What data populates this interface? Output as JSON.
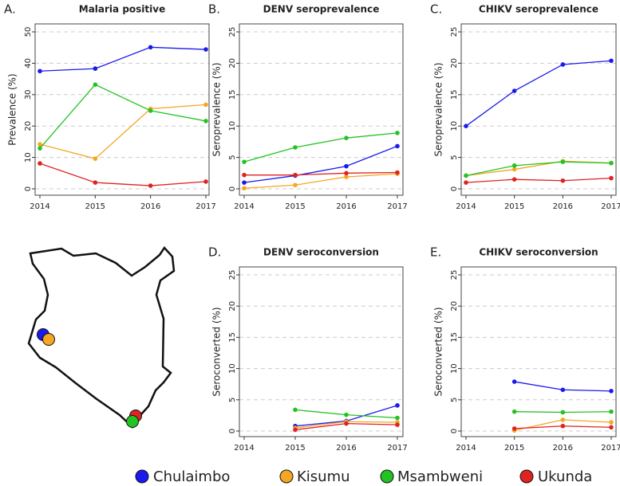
{
  "chart_data": [
    {
      "type": "line",
      "label": "A.",
      "title": "Malaria positive",
      "y_label": "Prevalence (%)",
      "x": [
        2014,
        2015,
        2016,
        2017
      ],
      "xlim": [
        2014,
        2017
      ],
      "xticks": [
        2014,
        2015,
        2016,
        2017
      ],
      "ylim": [
        0,
        50
      ],
      "yticks": [
        0,
        10,
        20,
        30,
        40,
        50
      ],
      "grid": true,
      "series": [
        {
          "name": "Chulaimbo",
          "color": "#1a1aee",
          "values": [
            37.5,
            38.3,
            45.1,
            44.4
          ]
        },
        {
          "name": "Kisumu",
          "color": "#f5a623",
          "values": [
            14.2,
            9.6,
            25.5,
            26.8
          ]
        },
        {
          "name": "Msambweni",
          "color": "#22c322",
          "values": [
            12.9,
            33.2,
            24.9,
            21.6
          ]
        },
        {
          "name": "Ukunda",
          "color": "#e02222",
          "values": [
            8.1,
            2.0,
            1.0,
            2.3
          ]
        }
      ]
    },
    {
      "type": "line",
      "label": "B.",
      "title": "DENV seroprevalence",
      "y_label": "Seroprevalence (%)",
      "x": [
        2014,
        2015,
        2016,
        2017
      ],
      "xlim": [
        2014,
        2017
      ],
      "xticks": [
        2014,
        2015,
        2016,
        2017
      ],
      "ylim": [
        0,
        25
      ],
      "yticks": [
        0,
        5,
        10,
        15,
        20,
        25
      ],
      "grid": true,
      "series": [
        {
          "name": "Chulaimbo",
          "color": "#1a1aee",
          "values": [
            1.0,
            2.1,
            3.6,
            6.8
          ]
        },
        {
          "name": "Kisumu",
          "color": "#f5a623",
          "values": [
            0.1,
            0.6,
            1.9,
            2.4
          ]
        },
        {
          "name": "Msambweni",
          "color": "#22c322",
          "values": [
            4.3,
            6.6,
            8.1,
            8.9
          ]
        },
        {
          "name": "Ukunda",
          "color": "#e02222",
          "values": [
            2.2,
            2.2,
            2.5,
            2.6
          ]
        }
      ]
    },
    {
      "type": "line",
      "label": "C.",
      "title": "CHIKV seroprevalence",
      "y_label": "Seroprevalence (%)",
      "x": [
        2014,
        2015,
        2016,
        2017
      ],
      "xlim": [
        2014,
        2017
      ],
      "xticks": [
        2014,
        2015,
        2016,
        2017
      ],
      "ylim": [
        0,
        25
      ],
      "yticks": [
        0,
        5,
        10,
        15,
        20,
        25
      ],
      "grid": true,
      "series": [
        {
          "name": "Chulaimbo",
          "color": "#1a1aee",
          "values": [
            10.0,
            15.6,
            19.8,
            20.4
          ]
        },
        {
          "name": "Kisumu",
          "color": "#f5a623",
          "values": [
            2.1,
            3.1,
            4.4,
            4.1
          ]
        },
        {
          "name": "Msambweni",
          "color": "#22c322",
          "values": [
            2.1,
            3.7,
            4.3,
            4.1
          ]
        },
        {
          "name": "Ukunda",
          "color": "#e02222",
          "values": [
            1.0,
            1.5,
            1.3,
            1.7
          ]
        }
      ]
    },
    {
      "type": "line",
      "label": "D.",
      "title": "DENV seroconversion",
      "y_label": "Seroconverted (%)",
      "x": [
        2014,
        2015,
        2016,
        2017
      ],
      "xlim": [
        2014,
        2017
      ],
      "xticks": [
        2014,
        2015,
        2016,
        2017
      ],
      "ylim": [
        0,
        25
      ],
      "yticks": [
        0,
        5,
        10,
        15,
        20,
        25
      ],
      "grid": true,
      "series": [
        {
          "name": "Chulaimbo",
          "color": "#1a1aee",
          "values": [
            null,
            0.8,
            1.6,
            4.1
          ]
        },
        {
          "name": "Kisumu",
          "color": "#f5a623",
          "values": [
            null,
            0.5,
            1.5,
            1.4
          ]
        },
        {
          "name": "Msambweni",
          "color": "#22c322",
          "values": [
            null,
            3.4,
            2.6,
            2.1
          ]
        },
        {
          "name": "Ukunda",
          "color": "#e02222",
          "values": [
            null,
            0.2,
            1.2,
            1.0
          ]
        }
      ]
    },
    {
      "type": "line",
      "label": "E.",
      "title": "CHIKV seroconversion",
      "y_label": "Seroconverted (%)",
      "x": [
        2014,
        2015,
        2016,
        2017
      ],
      "xlim": [
        2014,
        2017
      ],
      "xticks": [
        2014,
        2015,
        2016,
        2017
      ],
      "ylim": [
        0,
        25
      ],
      "yticks": [
        0,
        5,
        10,
        15,
        20,
        25
      ],
      "grid": true,
      "series": [
        {
          "name": "Chulaimbo",
          "color": "#1a1aee",
          "values": [
            null,
            7.9,
            6.6,
            6.4
          ]
        },
        {
          "name": "Kisumu",
          "color": "#f5a623",
          "values": [
            null,
            0.1,
            1.8,
            1.4
          ]
        },
        {
          "name": "Msambweni",
          "color": "#22c322",
          "values": [
            null,
            3.1,
            3.0,
            3.1
          ]
        },
        {
          "name": "Ukunda",
          "color": "#e02222",
          "values": [
            null,
            0.4,
            0.8,
            0.6
          ]
        }
      ]
    }
  ]
}
